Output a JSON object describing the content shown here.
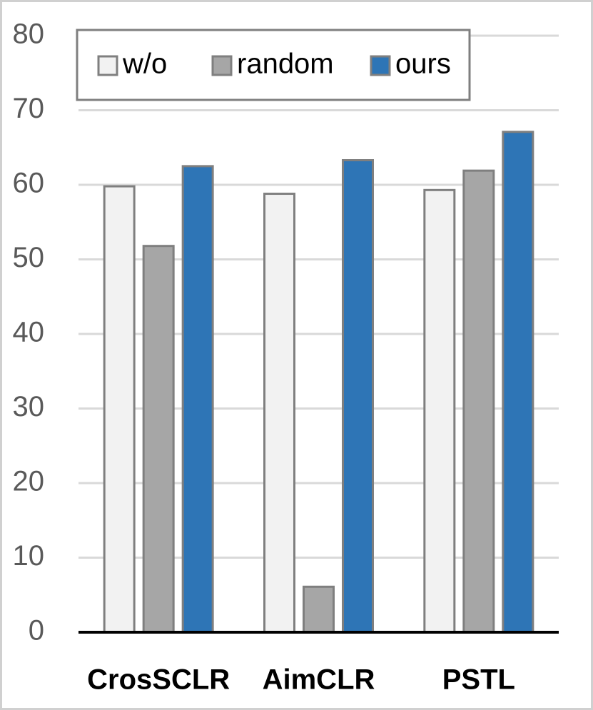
{
  "chart_data": {
    "type": "bar",
    "categories": [
      "CrosSCLR",
      "AimCLR",
      "PSTL"
    ],
    "series": [
      {
        "name": "w/o",
        "color": "#f2f2f2",
        "values": [
          59.8,
          58.8,
          59.3
        ]
      },
      {
        "name": "random",
        "color": "#a6a6a6",
        "values": [
          51.8,
          6.1,
          61.9
        ]
      },
      {
        "name": "ours",
        "color": "#2e75b6",
        "values": [
          62.5,
          63.3,
          67.1
        ]
      }
    ],
    "ylim": [
      0,
      80
    ],
    "yticks": [
      0,
      10,
      20,
      30,
      40,
      50,
      60,
      70,
      80
    ],
    "grid": true,
    "legend": "upper left"
  }
}
